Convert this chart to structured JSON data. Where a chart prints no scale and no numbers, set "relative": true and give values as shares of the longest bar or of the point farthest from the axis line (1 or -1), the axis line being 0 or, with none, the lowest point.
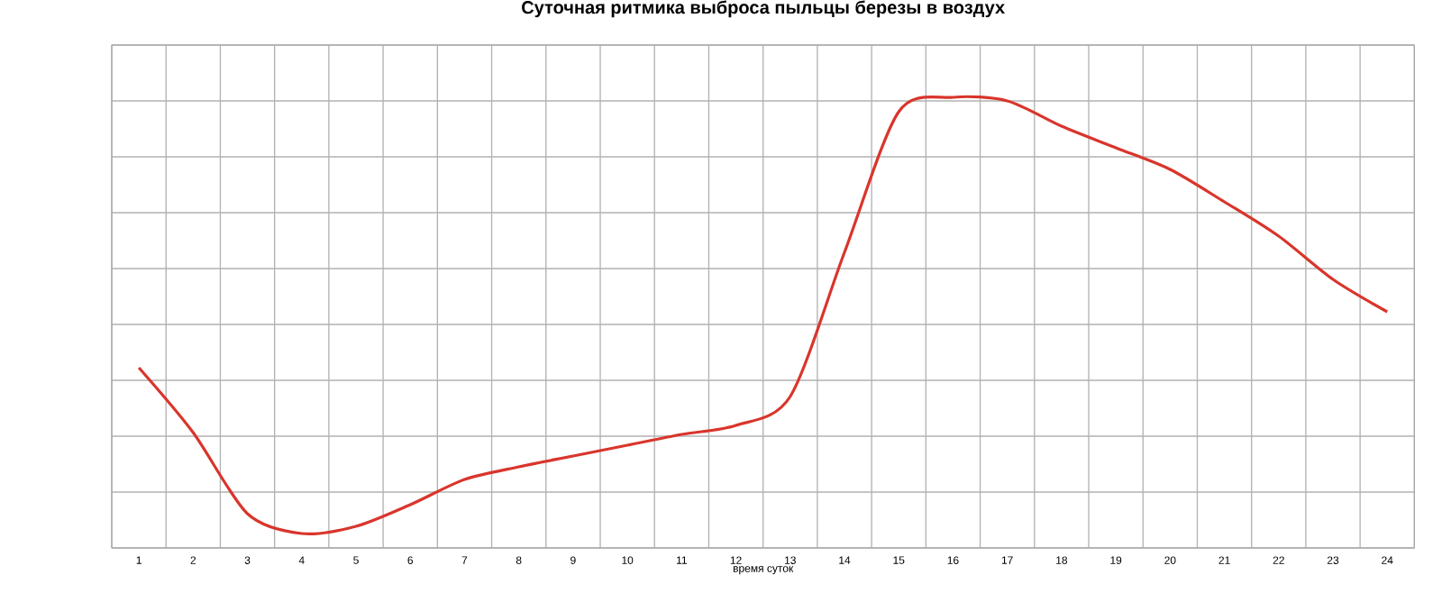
{
  "chart_data": {
    "type": "line",
    "title": "Суточная ритмика выброса пыльцы березы в воздух",
    "xlabel": "время суток",
    "relative": true,
    "grid": true,
    "marker": "none",
    "line_style": "solid",
    "categories": [
      "1",
      "2",
      "3",
      "4",
      "5",
      "6",
      "7",
      "8",
      "9",
      "10",
      "11",
      "12",
      "13",
      "14",
      "15",
      "16",
      "17",
      "18",
      "19",
      "20",
      "21",
      "22",
      "23",
      "24"
    ],
    "series": [
      {
        "color": "#d9352c",
        "values": [
          0.4,
          0.256,
          0.076,
          0.032,
          0.048,
          0.096,
          0.152,
          0.18,
          0.204,
          0.228,
          0.252,
          0.272,
          0.336,
          0.656,
          0.968,
          1,
          0.992,
          0.936,
          0.888,
          0.84,
          0.768,
          0.692,
          0.596,
          0.524
        ]
      }
    ]
  }
}
